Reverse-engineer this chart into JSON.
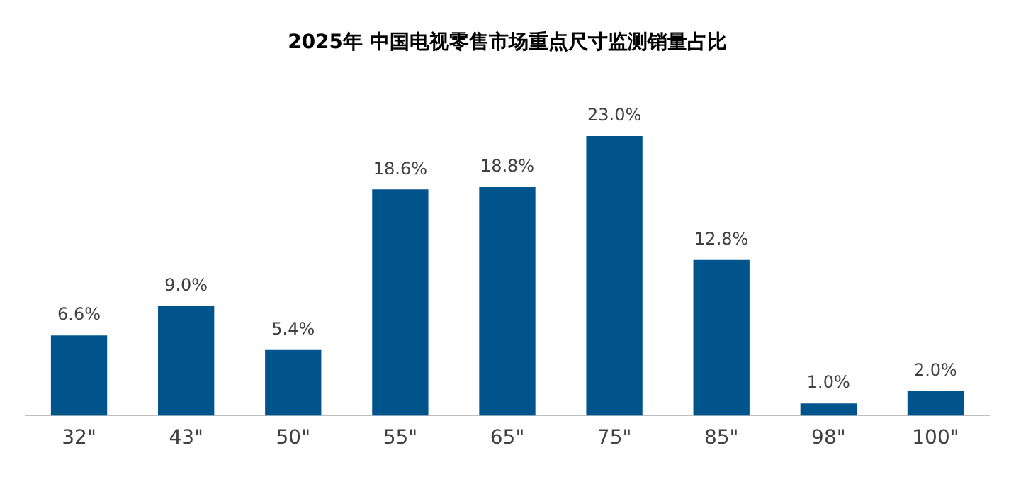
{
  "chart_data": {
    "type": "bar",
    "title": "2025年 中国电视零售市场重点尺寸监测销量占比",
    "categories": [
      "32\"",
      "43\"",
      "50\"",
      "55\"",
      "65\"",
      "75\"",
      "85\"",
      "98\"",
      "100\""
    ],
    "values": [
      6.6,
      9.0,
      5.4,
      18.6,
      18.8,
      23.0,
      12.8,
      1.0,
      2.0
    ],
    "value_labels": [
      "6.6%",
      "9.0%",
      "5.4%",
      "18.6%",
      "18.8%",
      "23.0%",
      "12.8%",
      "1.0%",
      "2.0%"
    ],
    "color": "#00548c",
    "grid": false,
    "legend": false
  }
}
